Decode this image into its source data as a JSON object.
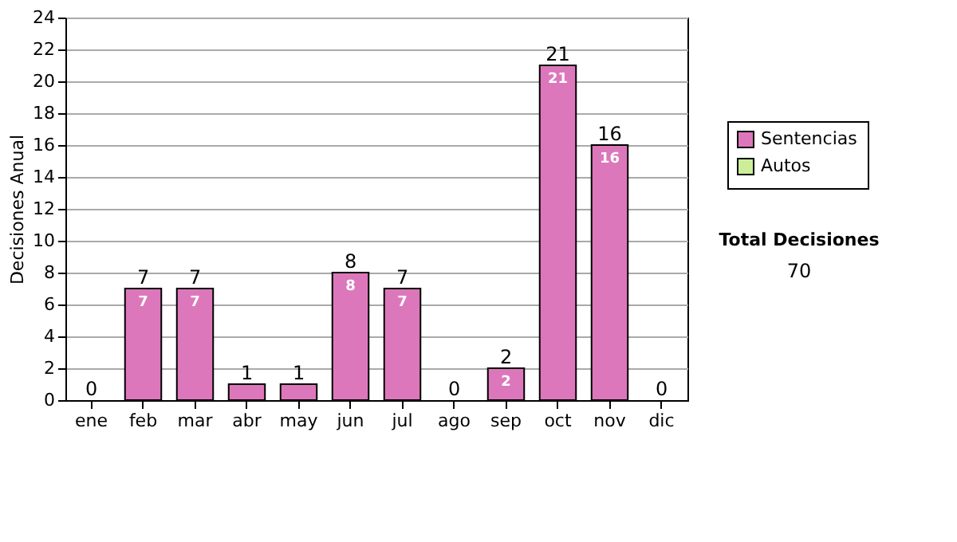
{
  "chart_data": {
    "type": "bar",
    "stacked": true,
    "ylabel": "Decisiones Anual",
    "categories": [
      "ene",
      "feb",
      "mar",
      "abr",
      "may",
      "jun",
      "jul",
      "ago",
      "sep",
      "oct",
      "nov",
      "dic"
    ],
    "series": [
      {
        "name": "Sentencias",
        "color": "#dd77bb",
        "values": [
          0,
          7,
          7,
          1,
          1,
          8,
          7,
          0,
          2,
          21,
          16,
          0
        ],
        "value_labels": [
          null,
          "7",
          "7",
          null,
          null,
          "8",
          "7",
          null,
          "2",
          "21",
          "16",
          null
        ]
      },
      {
        "name": "Autos",
        "color": "#ccee99",
        "values": [
          0,
          0,
          0,
          0,
          0,
          0,
          0,
          0,
          0,
          0,
          0,
          0
        ]
      }
    ],
    "totals": [
      "0",
      "7",
      "7",
      "1",
      "1",
      "8",
      "7",
      "0",
      "2",
      "21",
      "16",
      "0"
    ],
    "ylim": [
      0,
      24
    ],
    "yticks": [
      0,
      2,
      4,
      6,
      8,
      10,
      12,
      14,
      16,
      18,
      20,
      22,
      24
    ],
    "grid": "y",
    "legend": "right",
    "annotations": [
      "Total Decisiones",
      "70"
    ]
  }
}
